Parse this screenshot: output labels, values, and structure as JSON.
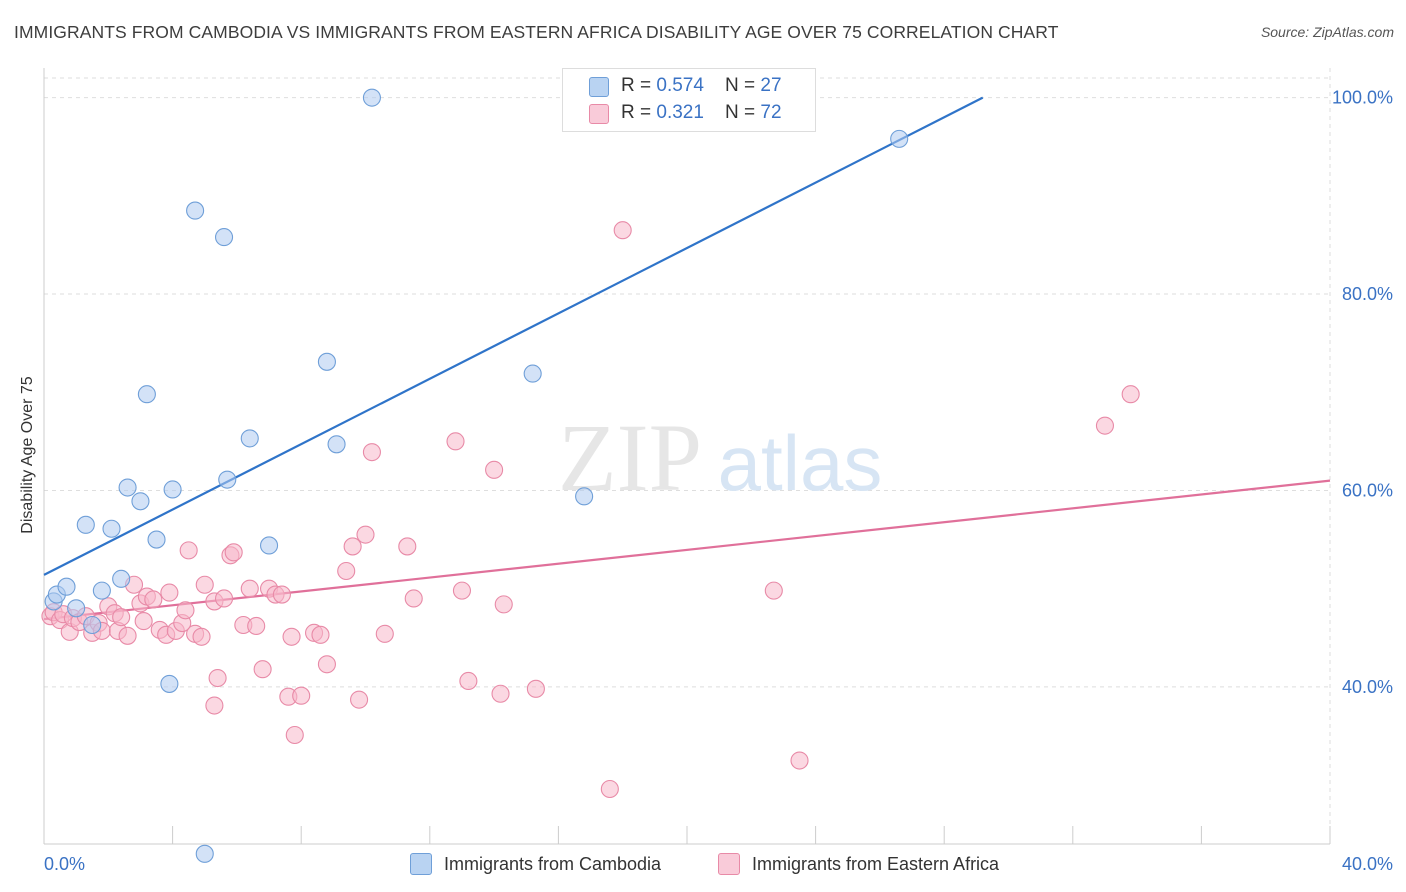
{
  "title": "IMMIGRANTS FROM CAMBODIA VS IMMIGRANTS FROM EASTERN AFRICA DISABILITY AGE OVER 75 CORRELATION CHART",
  "source": "Source: ZipAtlas.com",
  "watermark": {
    "zip": "ZIP",
    "atlas": "atlas"
  },
  "colors": {
    "cambodia_fill": "#aecbf0",
    "cambodia_stroke": "#6f9fd8",
    "cambodia_line": "#2f74c9",
    "eafrica_fill": "#f7b8cb",
    "eafrica_stroke": "#e88aa7",
    "eafrica_line": "#e0709a",
    "tick_label": "#3a72c4",
    "grid": "#dedede"
  },
  "legend_top": {
    "rows": [
      {
        "r_label": "R = ",
        "r_value": "0.574",
        "n_label": "N = ",
        "n_value": "27"
      },
      {
        "r_label": "R = ",
        "r_value": "0.321",
        "n_label": "N = ",
        "n_value": "72"
      }
    ]
  },
  "legend_bottom": {
    "cambodia": "Immigrants from Cambodia",
    "eafrica": "Immigrants from Eastern Africa"
  },
  "chart_data": {
    "type": "scatter",
    "title": "IMMIGRANTS FROM CAMBODIA VS IMMIGRANTS FROM EASTERN AFRICA DISABILITY AGE OVER 75 CORRELATION CHART",
    "xlabel": "",
    "ylabel": "Disability Age Over 75",
    "xlim": [
      0,
      40
    ],
    "ylim": [
      24,
      102
    ],
    "x_tick_labels": [
      "0.0%",
      "40.0%"
    ],
    "y_ticks": [
      40,
      60,
      80,
      100
    ],
    "y_tick_labels": [
      "40.0%",
      "60.0%",
      "80.0%",
      "100.0%"
    ],
    "grid": true,
    "legend_position": "bottom",
    "series": [
      {
        "name": "Immigrants from Cambodia",
        "r": 0.574,
        "n": 27,
        "trend": {
          "x": [
            0.0,
            29.2
          ],
          "y": [
            51.4,
            100.0
          ]
        },
        "points": [
          [
            0.3,
            48.7
          ],
          [
            0.4,
            49.4
          ],
          [
            0.7,
            50.2
          ],
          [
            1.0,
            48.0
          ],
          [
            1.3,
            56.5
          ],
          [
            1.5,
            46.3
          ],
          [
            1.8,
            49.8
          ],
          [
            2.1,
            56.1
          ],
          [
            2.4,
            51.0
          ],
          [
            2.6,
            60.3
          ],
          [
            3.0,
            58.9
          ],
          [
            3.2,
            69.8
          ],
          [
            3.5,
            55.0
          ],
          [
            3.9,
            40.3
          ],
          [
            4.0,
            60.1
          ],
          [
            4.7,
            88.5
          ],
          [
            5.0,
            23.0
          ],
          [
            5.6,
            85.8
          ],
          [
            5.7,
            61.1
          ],
          [
            6.4,
            65.3
          ],
          [
            7.0,
            54.4
          ],
          [
            8.8,
            73.1
          ],
          [
            9.1,
            64.7
          ],
          [
            10.2,
            100.0
          ],
          [
            15.2,
            71.9
          ],
          [
            16.8,
            59.4
          ],
          [
            26.6,
            95.8
          ]
        ]
      },
      {
        "name": "Immigrants from Eastern Africa",
        "r": 0.321,
        "n": 72,
        "trend": {
          "x": [
            0.0,
            40.0
          ],
          "y": [
            46.9,
            61.0
          ]
        },
        "points": [
          [
            0.2,
            47.2
          ],
          [
            0.3,
            47.6
          ],
          [
            0.5,
            46.8
          ],
          [
            0.6,
            47.4
          ],
          [
            0.8,
            45.6
          ],
          [
            0.9,
            47.0
          ],
          [
            1.1,
            46.6
          ],
          [
            1.3,
            47.2
          ],
          [
            1.5,
            45.5
          ],
          [
            1.7,
            46.5
          ],
          [
            1.8,
            45.7
          ],
          [
            2.0,
            48.2
          ],
          [
            2.2,
            47.5
          ],
          [
            2.3,
            45.7
          ],
          [
            2.4,
            47.1
          ],
          [
            2.6,
            45.2
          ],
          [
            2.8,
            50.4
          ],
          [
            3.0,
            48.5
          ],
          [
            3.1,
            46.7
          ],
          [
            3.2,
            49.2
          ],
          [
            3.4,
            48.9
          ],
          [
            3.6,
            45.8
          ],
          [
            3.8,
            45.3
          ],
          [
            3.9,
            49.6
          ],
          [
            4.1,
            45.7
          ],
          [
            4.3,
            46.5
          ],
          [
            4.4,
            47.8
          ],
          [
            4.5,
            53.9
          ],
          [
            4.7,
            45.4
          ],
          [
            4.9,
            45.1
          ],
          [
            5.0,
            50.4
          ],
          [
            5.3,
            48.7
          ],
          [
            5.4,
            40.9
          ],
          [
            5.6,
            49.0
          ],
          [
            5.8,
            53.4
          ],
          [
            5.9,
            53.7
          ],
          [
            6.2,
            46.3
          ],
          [
            6.4,
            50.0
          ],
          [
            6.6,
            46.2
          ],
          [
            6.8,
            41.8
          ],
          [
            7.0,
            50.0
          ],
          [
            7.2,
            49.4
          ],
          [
            7.4,
            49.4
          ],
          [
            7.6,
            39.0
          ],
          [
            7.7,
            45.1
          ],
          [
            7.8,
            35.1
          ],
          [
            8.0,
            39.1
          ],
          [
            8.4,
            45.5
          ],
          [
            8.6,
            45.3
          ],
          [
            8.8,
            42.3
          ],
          [
            9.4,
            51.8
          ],
          [
            9.6,
            54.3
          ],
          [
            9.8,
            38.7
          ],
          [
            10.0,
            55.5
          ],
          [
            10.2,
            63.9
          ],
          [
            10.6,
            45.4
          ],
          [
            11.3,
            54.3
          ],
          [
            11.5,
            49.0
          ],
          [
            12.8,
            65.0
          ],
          [
            13.0,
            49.8
          ],
          [
            13.2,
            40.6
          ],
          [
            14.0,
            62.1
          ],
          [
            14.2,
            39.3
          ],
          [
            14.3,
            48.4
          ],
          [
            15.3,
            39.8
          ],
          [
            17.6,
            29.6
          ],
          [
            18.0,
            86.5
          ],
          [
            22.7,
            49.8
          ],
          [
            23.5,
            32.5
          ],
          [
            33.0,
            66.6
          ],
          [
            33.8,
            69.8
          ],
          [
            5.3,
            38.1
          ]
        ]
      }
    ]
  }
}
